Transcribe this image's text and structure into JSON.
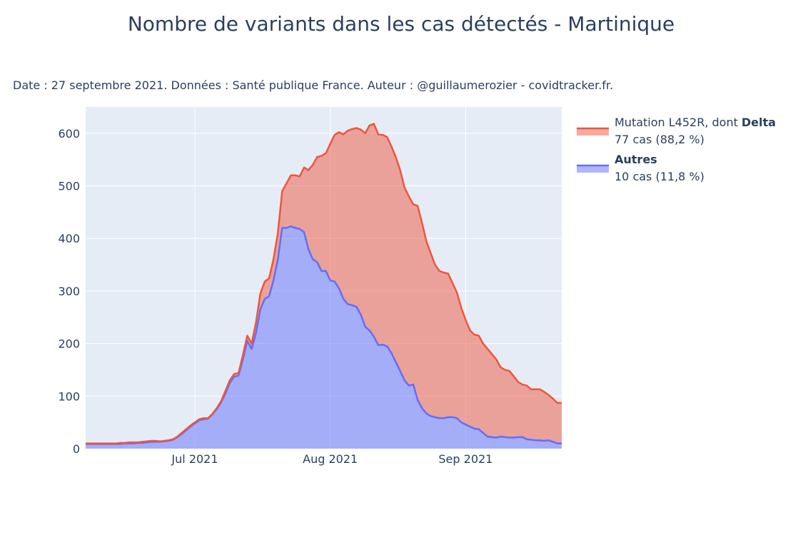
{
  "chart_data": {
    "type": "area",
    "stacked": true,
    "title": "Nombre de variants dans les cas détectés - Martinique",
    "subtitle": "Date : 27 septembre 2021. Données : Santé publique France. Auteur : @guillaumerozier - covidtracker.fr.",
    "categories": [
      null,
      null,
      null,
      null,
      null,
      null,
      null,
      null,
      null,
      null,
      null,
      null,
      null,
      null,
      null,
      null,
      null,
      null,
      null,
      null,
      null,
      null,
      null,
      null,
      null,
      "Jul 2021",
      null,
      null,
      null,
      null,
      null,
      null,
      null,
      null,
      null,
      null,
      null,
      null,
      null,
      null,
      null,
      null,
      null,
      null,
      null,
      null,
      null,
      null,
      null,
      null,
      null,
      null,
      null,
      null,
      null,
      null,
      "Aug 2021",
      null,
      null,
      null,
      null,
      null,
      null,
      null,
      null,
      null,
      null,
      null,
      null,
      null,
      null,
      null,
      null,
      null,
      null,
      null,
      null,
      null,
      null,
      null,
      null,
      null,
      null,
      null,
      null,
      null,
      null,
      "Sep 2021",
      null,
      null,
      null,
      null,
      null,
      null,
      null,
      null,
      null,
      null,
      null,
      null,
      null,
      null,
      null,
      null,
      null,
      null,
      null,
      null,
      null,
      null
    ],
    "series": [
      {
        "name_bold": "Autres",
        "detail": "10 cas (11,8 %)",
        "color": "#636efa",
        "values": [
          9,
          9,
          9,
          9,
          9,
          9,
          9,
          9,
          9,
          10,
          10,
          10,
          11,
          11,
          12,
          13,
          13,
          13,
          14,
          15,
          17,
          22,
          28,
          35,
          42,
          48,
          54,
          56,
          57,
          65,
          75,
          88,
          105,
          125,
          137,
          139,
          170,
          205,
          190,
          220,
          265,
          285,
          290,
          320,
          360,
          420,
          420,
          423,
          420,
          418,
          412,
          380,
          360,
          355,
          338,
          338,
          320,
          318,
          305,
          285,
          275,
          273,
          270,
          255,
          232,
          225,
          213,
          197,
          198,
          195,
          182,
          165,
          148,
          130,
          120,
          122,
          93,
          77,
          67,
          62,
          60,
          58,
          58,
          60,
          60,
          58,
          50,
          46,
          42,
          38,
          37,
          30,
          23,
          22,
          21,
          23,
          22,
          21,
          21,
          22,
          22,
          18,
          17,
          16,
          16,
          15,
          16,
          13,
          10,
          10
        ]
      },
      {
        "name": "Mutation L452R, dont",
        "name_bold": "Delta",
        "detail": "77 cas (88,2 %)",
        "color": "#ef553b",
        "values": [
          1,
          1,
          1,
          1,
          1,
          1,
          1,
          1,
          2,
          1,
          2,
          2,
          1,
          2,
          2,
          2,
          2,
          1,
          1,
          1,
          1,
          1,
          2,
          2,
          2,
          2,
          2,
          2,
          1,
          1,
          2,
          2,
          5,
          5,
          5,
          5,
          8,
          10,
          10,
          20,
          30,
          33,
          34,
          40,
          50,
          70,
          85,
          97,
          100,
          100,
          123,
          150,
          180,
          200,
          219,
          224,
          260,
          279,
          297,
          313,
          330,
          335,
          340,
          352,
          368,
          390,
          405,
          401,
          399,
          398,
          393,
          390,
          382,
          367,
          360,
          343,
          369,
          353,
          328,
          310,
          290,
          280,
          277,
          273,
          255,
          239,
          218,
          199,
          183,
          179,
          178,
          170,
          167,
          158,
          149,
          132,
          128,
          127,
          117,
          105,
          100,
          102,
          96,
          97,
          97,
          93,
          86,
          82,
          77,
          77
        ]
      }
    ],
    "fill_opacity": 0.5,
    "ylim": [
      0,
      650
    ],
    "yticks": [
      0,
      100,
      200,
      300,
      400,
      500,
      600
    ],
    "grid": true,
    "legend": "right"
  }
}
